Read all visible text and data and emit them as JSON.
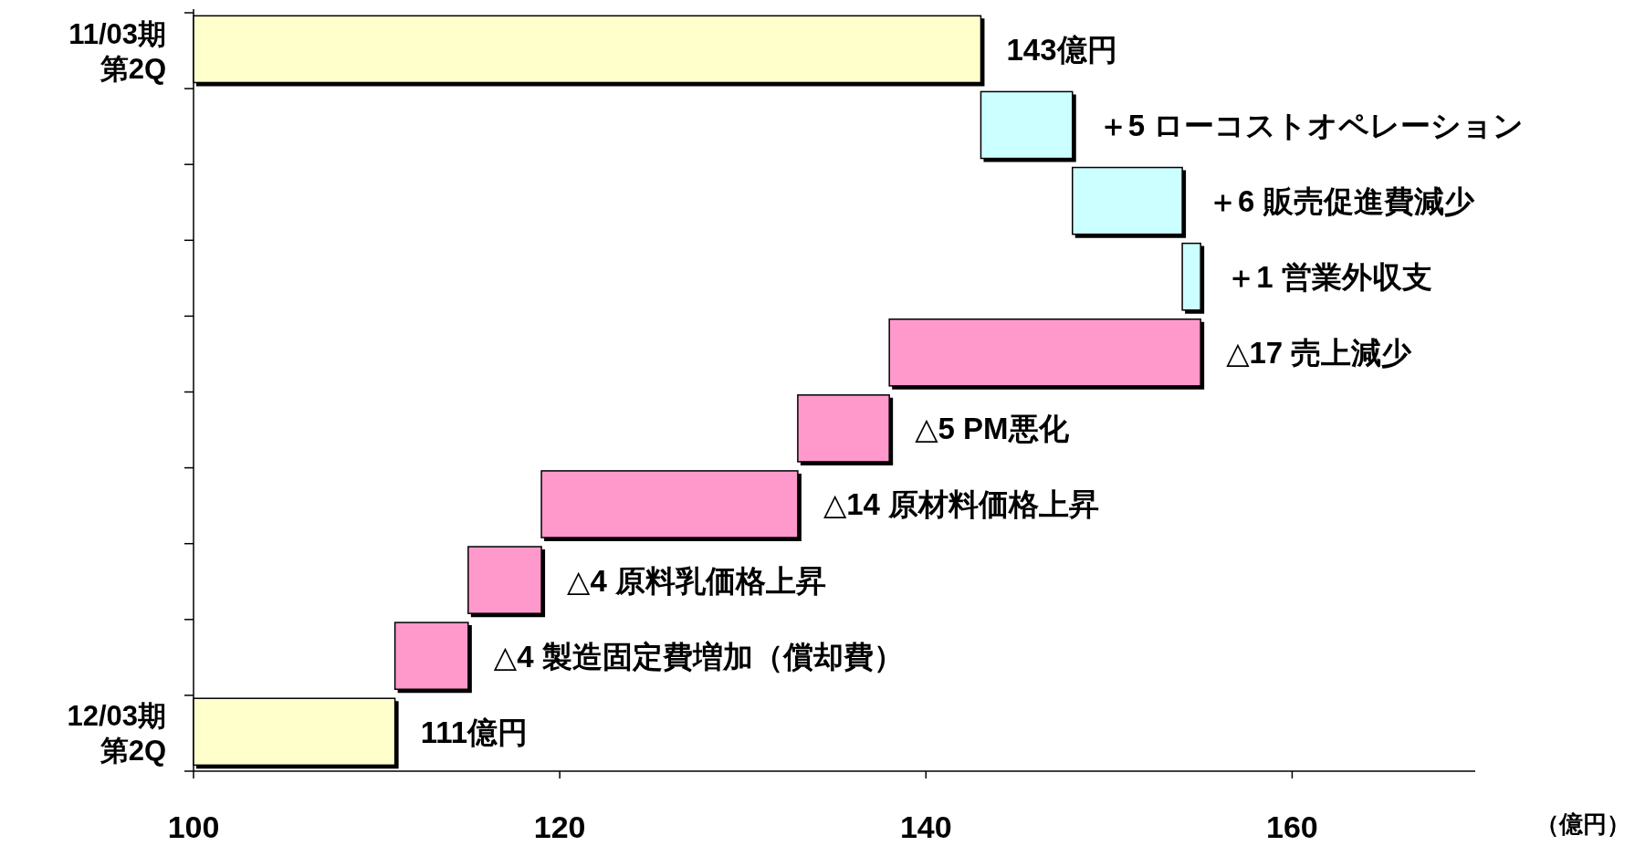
{
  "chart_data": {
    "type": "bar",
    "orientation": "horizontal",
    "categories": [
      "11/03期第2Q",
      null,
      null,
      null,
      null,
      null,
      null,
      null,
      null,
      "12/03期第2Q"
    ],
    "values": [
      143,
      5,
      6,
      1,
      -17,
      -5,
      -14,
      -4,
      -4,
      111
    ],
    "base": [
      null,
      143,
      148,
      154,
      155,
      138,
      133,
      119,
      115,
      null
    ],
    "colors": [
      "#ffffcc",
      "#ccffff",
      "#ccffff",
      "#ccffff",
      "#ff99cc",
      "#ff99cc",
      "#ff99cc",
      "#ff99cc",
      "#ff99cc",
      "#ffffcc"
    ],
    "value_labels": [
      "143億円",
      "＋5 ローコストオペレーション",
      "＋6 販売促進費減少",
      "＋1 営業外収支",
      "△17 売上減少",
      "△5 PM悪化",
      "△14 原材料価格上昇",
      "△4 原料乳価格上昇",
      "△4 製造固定費増加（償却費）",
      "111億円"
    ],
    "xlim": [
      100,
      170
    ],
    "xticks": [
      100,
      120,
      140,
      160
    ],
    "xlabel": "（億円）"
  }
}
